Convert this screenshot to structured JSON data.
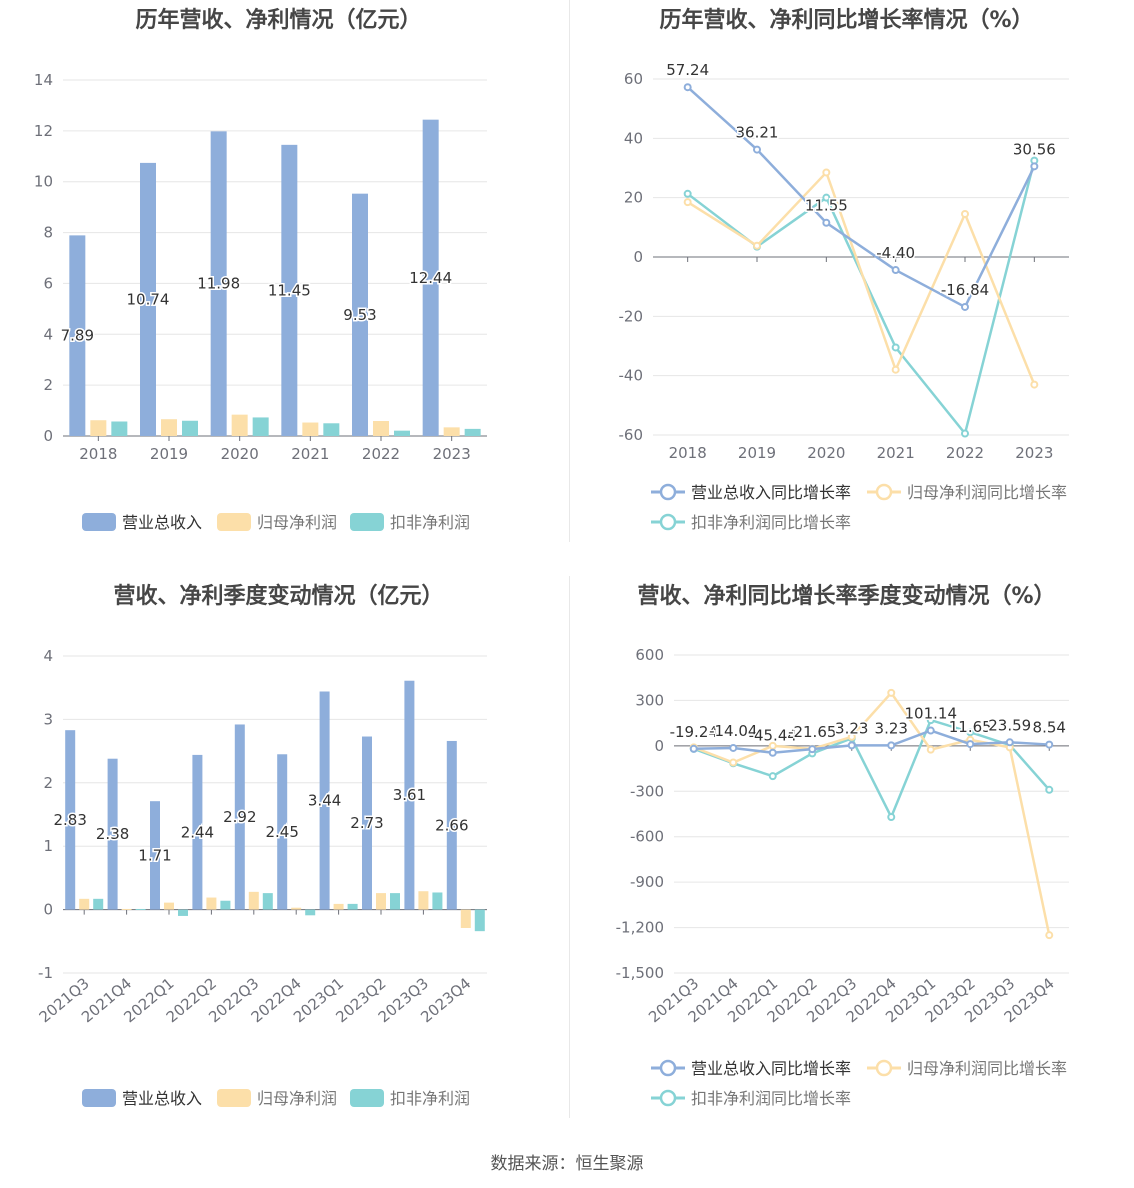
{
  "footer": {
    "source": "数据来源：恒生聚源"
  },
  "chart_data": [
    {
      "type": "bar",
      "title": "历年营收、净利情况（亿元）",
      "categories": [
        "2018",
        "2019",
        "2020",
        "2021",
        "2022",
        "2023"
      ],
      "ylim": [
        0,
        14
      ],
      "yticks": [
        0,
        2,
        4,
        6,
        8,
        10,
        12,
        14
      ],
      "grid": true,
      "legend_position": "bottom",
      "series": [
        {
          "name": "营业总收入",
          "color": "#8eaedb",
          "values": [
            7.89,
            10.74,
            11.98,
            11.45,
            9.53,
            12.44
          ],
          "labels": [
            "7.89",
            "10.74",
            "11.98",
            "11.45",
            "9.53",
            "12.44"
          ]
        },
        {
          "name": "归母净利润",
          "color": "#fcdfa9",
          "values": [
            0.62,
            0.66,
            0.84,
            0.53,
            0.59,
            0.34
          ]
        },
        {
          "name": "扣非净利润",
          "color": "#86d3d5",
          "values": [
            0.57,
            0.6,
            0.73,
            0.5,
            0.21,
            0.28
          ]
        }
      ]
    },
    {
      "type": "line",
      "title": "历年营收、净利同比增长率情况（%）",
      "categories": [
        "2018",
        "2019",
        "2020",
        "2021",
        "2022",
        "2023"
      ],
      "ylim": [
        -60,
        60
      ],
      "yticks": [
        -60,
        -40,
        -20,
        0,
        20,
        40,
        60
      ],
      "grid": true,
      "legend_position": "bottom",
      "series": [
        {
          "name": "营业总收入同比增长率",
          "color": "#8eaedb",
          "values": [
            57.24,
            36.21,
            11.55,
            -4.4,
            -16.84,
            30.56
          ],
          "labels": [
            "57.24",
            "36.21",
            "11.55",
            "-4.40",
            "-16.84",
            "30.56"
          ]
        },
        {
          "name": "归母净利润同比增长率",
          "color": "#fcdfa9",
          "values": [
            18.5,
            3.8,
            28.5,
            -38.0,
            14.5,
            -43.0
          ]
        },
        {
          "name": "扣非净利润同比增长率",
          "color": "#86d3d5",
          "values": [
            21.3,
            3.5,
            20.0,
            -30.5,
            -59.5,
            32.5
          ]
        }
      ]
    },
    {
      "type": "bar",
      "title": "营收、净利季度变动情况（亿元）",
      "categories": [
        "2021Q3",
        "2021Q4",
        "2022Q1",
        "2022Q2",
        "2022Q3",
        "2022Q4",
        "2023Q1",
        "2023Q2",
        "2023Q3",
        "2023Q4"
      ],
      "ylim": [
        -1,
        4
      ],
      "yticks": [
        -1,
        0,
        1,
        2,
        3,
        4
      ],
      "grid": true,
      "legend_position": "bottom",
      "series": [
        {
          "name": "营业总收入",
          "color": "#8eaedb",
          "values": [
            2.83,
            2.38,
            1.71,
            2.44,
            2.92,
            2.45,
            3.44,
            2.73,
            3.61,
            2.66
          ],
          "labels": [
            "2.83",
            "2.38",
            "1.71",
            "2.44",
            "2.92",
            "2.45",
            "3.44",
            "2.73",
            "3.61",
            "2.66"
          ]
        },
        {
          "name": "归母净利润",
          "color": "#fcdfa9",
          "values": [
            0.17,
            0.01,
            0.11,
            0.19,
            0.28,
            0.03,
            0.09,
            0.26,
            0.29,
            -0.29
          ]
        },
        {
          "name": "扣非净利润",
          "color": "#86d3d5",
          "values": [
            0.17,
            0.01,
            -0.1,
            0.14,
            0.26,
            -0.09,
            0.09,
            0.26,
            0.27,
            -0.34
          ]
        }
      ]
    },
    {
      "type": "line",
      "title": "营收、净利同比增长率季度变动情况（%）",
      "categories": [
        "2021Q3",
        "2021Q4",
        "2022Q1",
        "2022Q2",
        "2022Q3",
        "2022Q4",
        "2023Q1",
        "2023Q2",
        "2023Q3",
        "2023Q4"
      ],
      "ylim": [
        -1500,
        600
      ],
      "yticks": [
        -1500,
        -1200,
        -900,
        -600,
        -300,
        0,
        300,
        600
      ],
      "ytick_labels": [
        "-1,500",
        "-1,200",
        "-900",
        "-600",
        "-300",
        "0",
        "300",
        "600"
      ],
      "grid": true,
      "legend_position": "bottom",
      "series": [
        {
          "name": "营业总收入同比增长率",
          "color": "#8eaedb",
          "values": [
            -19.24,
            -14.04,
            -45.44,
            -21.65,
            3.23,
            3.23,
            101.14,
            11.65,
            23.59,
            8.54
          ],
          "labels": [
            "-19.24",
            "-14.04",
            "-45.44",
            "-21.65",
            "3.23",
            "3.23",
            "101.14",
            "11.65",
            "23.59",
            "8.54"
          ]
        },
        {
          "name": "归母净利润同比增长率",
          "color": "#fcdfa9",
          "values": [
            -10,
            -110,
            0,
            -20,
            60,
            350,
            -25,
            40,
            -10,
            -1250
          ]
        },
        {
          "name": "扣非净利润同比增长率",
          "color": "#86d3d5",
          "values": [
            -20,
            -115,
            -200,
            -50,
            50,
            -470,
            170,
            90,
            5,
            -290
          ]
        }
      ]
    }
  ]
}
